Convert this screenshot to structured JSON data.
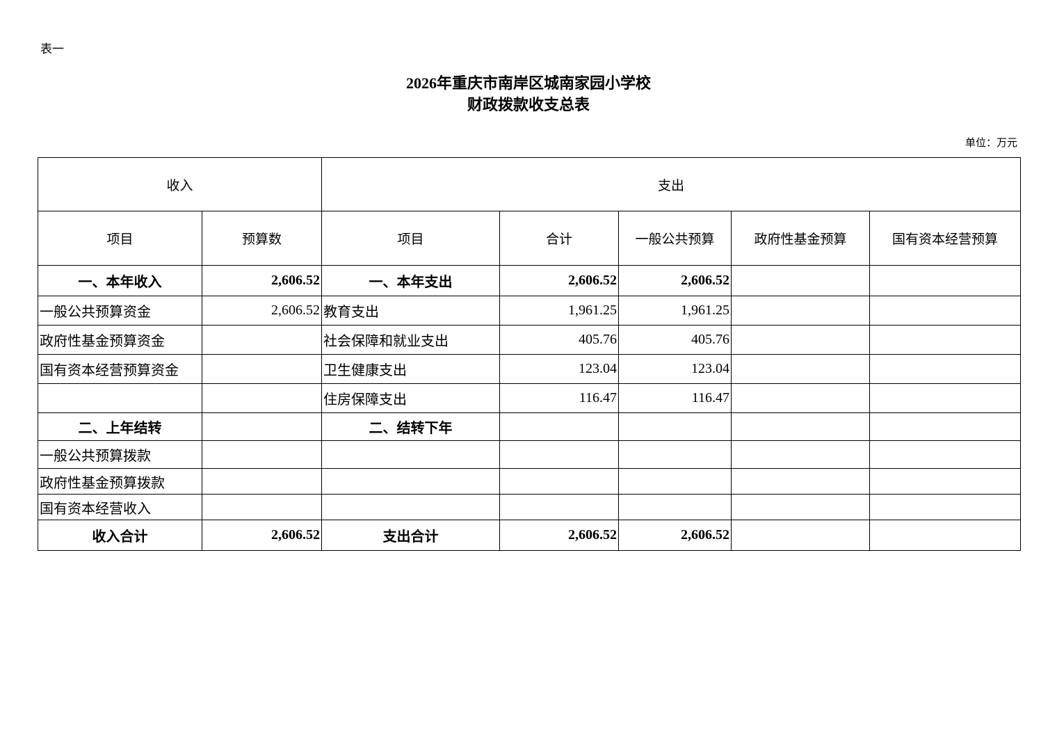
{
  "doc_label": "表一",
  "title_line1": "2026年重庆市南岸区城南家园小学校",
  "title_line2": "财政拨款收支总表",
  "unit": "单位：万元",
  "table": {
    "group_headers": [
      "收入",
      "支出"
    ],
    "columns": [
      "项目",
      "预算数",
      "项目",
      "合计",
      "一般公共预算",
      "政府性基金预算",
      "国有资本经营预算"
    ],
    "rows": [
      {
        "bold": true,
        "cells": [
          "一、本年收入",
          "2,606.52",
          "一、本年支出",
          "2,606.52",
          "2,606.52",
          "",
          ""
        ]
      },
      {
        "bold": false,
        "cells": [
          "一般公共预算资金",
          "2,606.52",
          "教育支出",
          "1,961.25",
          "1,961.25",
          "",
          ""
        ]
      },
      {
        "bold": false,
        "cells": [
          "政府性基金预算资金",
          "",
          "社会保障和就业支出",
          "405.76",
          "405.76",
          "",
          ""
        ]
      },
      {
        "bold": false,
        "cells": [
          "国有资本经营预算资金",
          "",
          "卫生健康支出",
          "123.04",
          "123.04",
          "",
          ""
        ]
      },
      {
        "bold": false,
        "cells": [
          "",
          "",
          "住房保障支出",
          "116.47",
          "116.47",
          "",
          ""
        ]
      },
      {
        "bold": true,
        "cells": [
          "二、上年结转",
          "",
          "二、结转下年",
          "",
          "",
          "",
          ""
        ]
      },
      {
        "bold": false,
        "cells": [
          "一般公共预算拨款",
          "",
          "",
          "",
          "",
          "",
          ""
        ]
      },
      {
        "bold": false,
        "cells": [
          "政府性基金预算拨款",
          "",
          "",
          "",
          "",
          "",
          ""
        ]
      },
      {
        "bold": false,
        "cells": [
          "国有资本经营收入",
          "",
          "",
          "",
          "",
          "",
          ""
        ]
      },
      {
        "bold": true,
        "cells": [
          "收入合计",
          "2,606.52",
          "支出合计",
          "2,606.52",
          "2,606.52",
          "",
          ""
        ]
      }
    ]
  }
}
